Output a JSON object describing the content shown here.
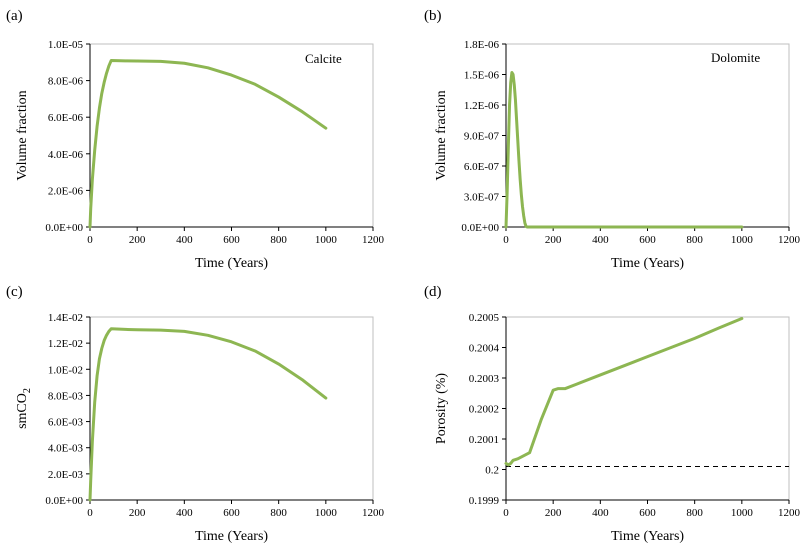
{
  "chart_data": [
    {
      "type": "line",
      "panel_label": "(a)",
      "annotation": "Calcite",
      "xlabel": "Time (Years)",
      "ylabel": "Volume fraction",
      "xlim": [
        0,
        1200
      ],
      "ylim": [
        0,
        1e-05
      ],
      "xticks": [
        "0",
        "200",
        "400",
        "600",
        "800",
        "1000",
        "1200"
      ],
      "yticks": [
        "0.0E+00",
        "2.0E-06",
        "4.0E-06",
        "6.0E-06",
        "8.0E-06",
        "1.0E-05"
      ],
      "grid": false,
      "line_color": "#8DB652",
      "series": [
        {
          "x": [
            0,
            3,
            10,
            20,
            30,
            40,
            50,
            60,
            70,
            80,
            90,
            150,
            200,
            300,
            400,
            500,
            600,
            700,
            800,
            900,
            950,
            1000
          ],
          "y": [
            0,
            1e-06,
            2.6e-06,
            4.2e-06,
            5.5e-06,
            6.5e-06,
            7.3e-06,
            7.9e-06,
            8.4e-06,
            8.8e-06,
            9.1e-06,
            9.08e-06,
            9.07e-06,
            9.05e-06,
            8.95e-06,
            8.7e-06,
            8.3e-06,
            7.8e-06,
            7.1e-06,
            6.3e-06,
            5.85e-06,
            5.4e-06
          ]
        }
      ]
    },
    {
      "type": "line",
      "panel_label": "(b)",
      "annotation": "Dolomite",
      "xlabel": "Time (Years)",
      "ylabel": "Volume fraction",
      "xlim": [
        0,
        1200
      ],
      "ylim": [
        0,
        1.8e-06
      ],
      "xticks": [
        "0",
        "200",
        "400",
        "600",
        "800",
        "1000",
        "1200"
      ],
      "yticks": [
        "0.0E+00",
        "3.0E-07",
        "6.0E-07",
        "9.0E-07",
        "1.2E-06",
        "1.5E-06",
        "1.8E-06"
      ],
      "grid": false,
      "line_color": "#8DB652",
      "series": [
        {
          "x": [
            0,
            5,
            10,
            15,
            20,
            25,
            30,
            35,
            40,
            45,
            50,
            55,
            60,
            65,
            70,
            75,
            80,
            85,
            90,
            1000
          ],
          "y": [
            0,
            3.5e-07,
            8e-07,
            1.2e-06,
            1.42e-06,
            1.52e-06,
            1.5e-06,
            1.4e-06,
            1.25e-06,
            1.05e-06,
            8.5e-07,
            6.5e-07,
            4.7e-07,
            3.2e-07,
            2e-07,
            1.1e-07,
            4e-08,
            5e-09,
            0,
            0
          ]
        }
      ]
    },
    {
      "type": "line",
      "panel_label": "(c)",
      "xlabel": "Time (Years)",
      "ylabel_main": "smCO",
      "ylabel_sub": "2",
      "xlim": [
        0,
        1200
      ],
      "ylim": [
        0,
        0.014
      ],
      "xticks": [
        "0",
        "200",
        "400",
        "600",
        "800",
        "1000",
        "1200"
      ],
      "yticks": [
        "0.0E+00",
        "2.0E-03",
        "4.0E-03",
        "6.0E-03",
        "8.0E-03",
        "1.0E-02",
        "1.2E-02",
        "1.4E-02"
      ],
      "grid": false,
      "line_color": "#8DB652",
      "series": [
        {
          "x": [
            0,
            3,
            10,
            20,
            30,
            40,
            50,
            60,
            70,
            80,
            90,
            150,
            200,
            300,
            400,
            500,
            600,
            700,
            800,
            900,
            1000
          ],
          "y": [
            0,
            0.0015,
            0.0045,
            0.0075,
            0.0095,
            0.0108,
            0.0116,
            0.0122,
            0.0126,
            0.0129,
            0.0131,
            0.01305,
            0.01302,
            0.013,
            0.0129,
            0.0126,
            0.0121,
            0.0114,
            0.0104,
            0.0092,
            0.0078
          ]
        }
      ]
    },
    {
      "type": "line",
      "panel_label": "(d)",
      "xlabel": "Time (Years)",
      "ylabel": "Porosity (%)",
      "xlim": [
        0,
        1200
      ],
      "ylim": [
        0.1999,
        0.2005
      ],
      "xticks": [
        "0",
        "200",
        "400",
        "600",
        "800",
        "1000",
        "1200"
      ],
      "yticks": [
        "0.1999",
        "0.2",
        "0.2001",
        "0.2002",
        "0.2003",
        "0.2004",
        "0.2005"
      ],
      "grid": false,
      "line_color": "#8DB652",
      "reference_line": {
        "y": 0.20001,
        "style": "dashed",
        "color": "#000000"
      },
      "series": [
        {
          "x": [
            0,
            10,
            20,
            30,
            50,
            100,
            150,
            200,
            220,
            250,
            300,
            400,
            500,
            600,
            700,
            800,
            900,
            1000
          ],
          "y": [
            0.20002,
            0.200015,
            0.20002,
            0.20003,
            0.200035,
            0.200055,
            0.200165,
            0.20026,
            0.200265,
            0.200265,
            0.20028,
            0.20031,
            0.20034,
            0.20037,
            0.2004,
            0.20043,
            0.200463,
            0.200495
          ]
        }
      ]
    }
  ]
}
